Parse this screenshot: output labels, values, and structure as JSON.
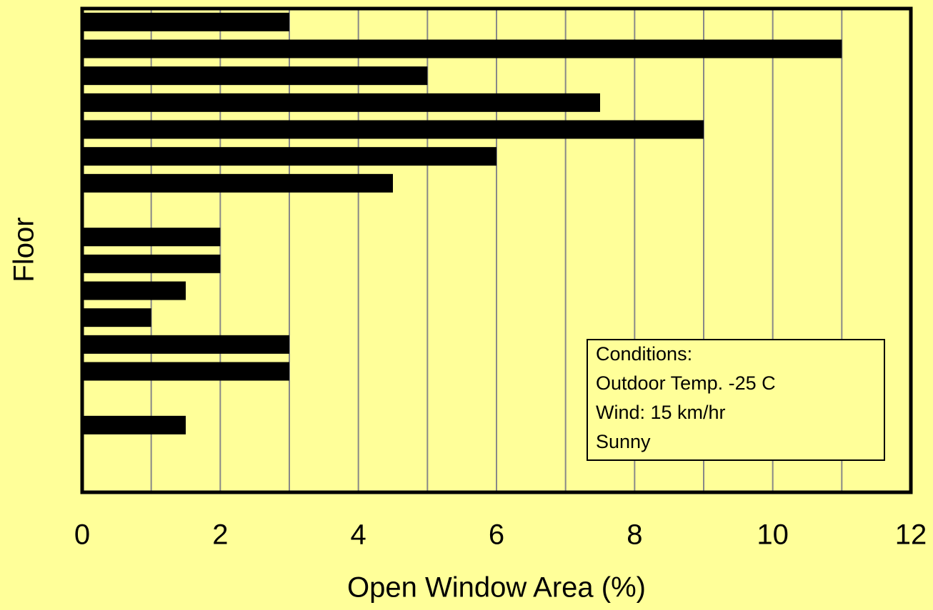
{
  "chart_data": {
    "type": "barh",
    "xlabel": "Open Window Area (%)",
    "ylabel": "Floor",
    "categories": [
      null,
      null,
      null,
      null,
      null,
      null,
      null,
      null,
      null,
      null,
      null,
      null,
      null,
      null,
      null,
      null,
      null,
      null
    ],
    "values": [
      3,
      11,
      5,
      7.5,
      9,
      6,
      4.5,
      0,
      2,
      2,
      1.5,
      1,
      3,
      3,
      0,
      1.5,
      0,
      0
    ],
    "color": "#000000",
    "xlim": [
      0,
      12
    ],
    "xticks": [
      0,
      2,
      4,
      6,
      8,
      10,
      12
    ],
    "minor_xticks": [
      1,
      3,
      5,
      7,
      9,
      11
    ],
    "grid": true,
    "annotation": [
      "Conditions:",
      "Outdoor Temp. -25 C",
      "Wind: 15 km/hr",
      "Sunny"
    ]
  }
}
